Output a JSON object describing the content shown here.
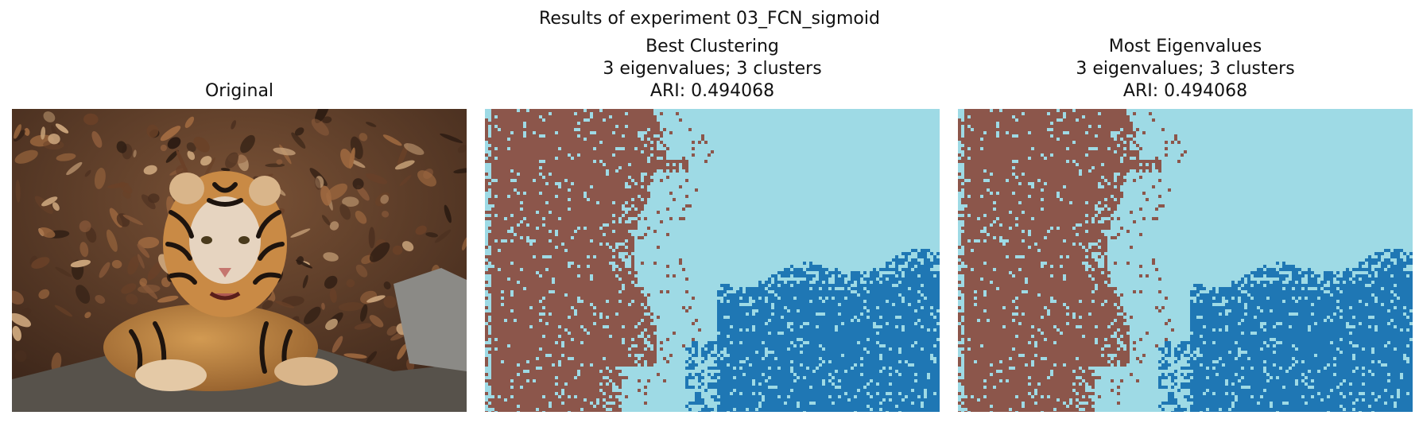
{
  "figure": {
    "suptitle": "Results of experiment 03_FCN_sigmoid"
  },
  "panels": [
    {
      "title_lines": [
        "Original"
      ],
      "kind": "photo",
      "image_content": "tiger-lying-among-dry-leaves"
    },
    {
      "title_lines": [
        "Best Clustering",
        "3 eigenvalues; 3 clusters",
        "ARI: 0.494068"
      ],
      "kind": "segmentation",
      "colors": [
        "#8c564b",
        "#9edae5",
        "#1f77b4"
      ]
    },
    {
      "title_lines": [
        "Most Eigenvalues",
        "3 eigenvalues; 3 clusters",
        "ARI: 0.494068"
      ],
      "kind": "segmentation",
      "colors": [
        "#8c564b",
        "#9edae5",
        "#1f77b4"
      ]
    }
  ]
}
